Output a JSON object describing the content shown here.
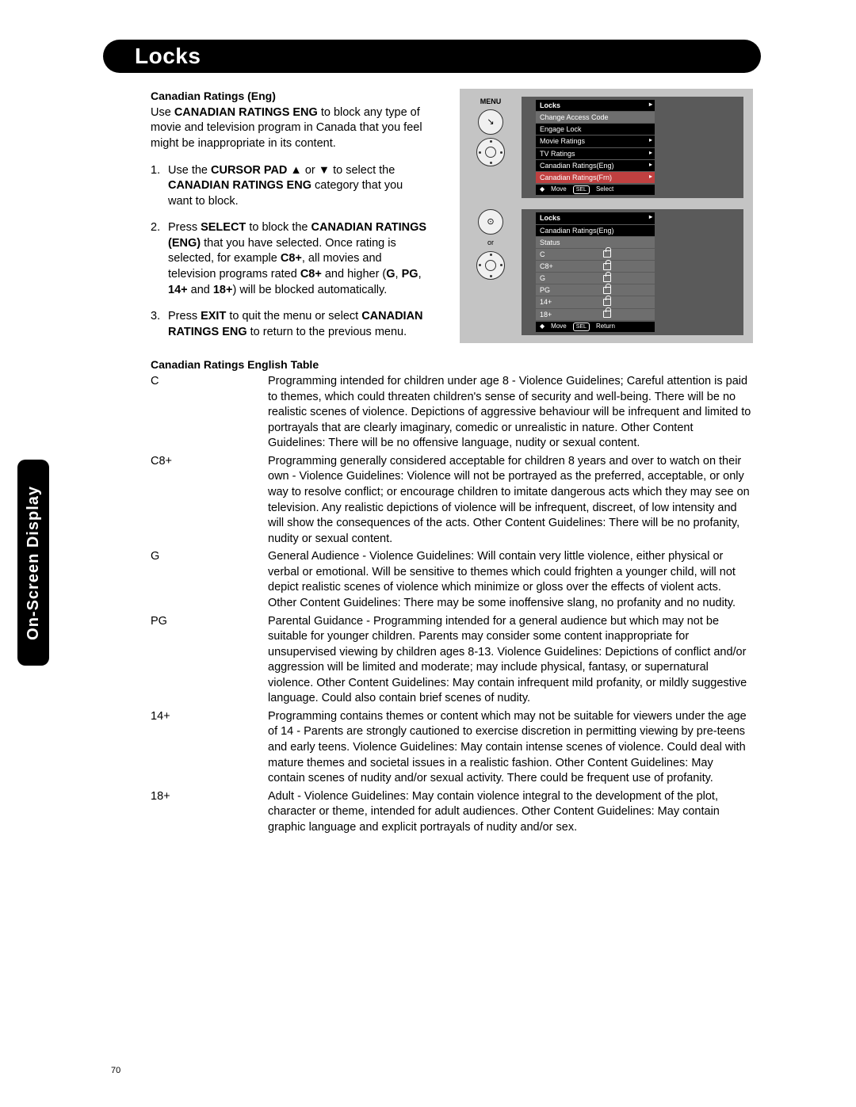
{
  "page": {
    "number": "70",
    "title": "Locks",
    "side_tab": "On-Screen Display"
  },
  "section": {
    "heading": "Canadian Ratings (Eng)",
    "intro_pre": "Use ",
    "intro_bold": "CANADIAN RATINGS ENG",
    "intro_post": " to block any type of movie and television program in Canada that you feel might be inappropriate in its content.",
    "steps": [
      {
        "p1": "Use the ",
        "b1": "CURSOR PAD",
        "p2": " ▲ or ▼ to select the ",
        "b2": "CANADIAN RATINGS ENG",
        "p3": " category that you want to block."
      },
      {
        "p1": "Press ",
        "b1": "SELECT",
        "p2": " to block the ",
        "b2": "CANADIAN RATINGS (ENG)",
        "p3": " that you have selected. Once rating is selected, for example ",
        "b3": "C8+",
        "p4": ", all movies and television programs rated ",
        "b4": "C8+",
        "p5": " and higher (",
        "b5": "G",
        "p6": ", ",
        "b6": "PG",
        "p7": ", ",
        "b7": "14+",
        "p8": " and ",
        "b8": "18+",
        "p9": ") will be blocked automatically."
      },
      {
        "p1": "Press ",
        "b1": "EXIT",
        "p2": " to quit the menu or select ",
        "b2": "CANADIAN RATINGS ENG",
        "p3": " to return to the previous menu."
      }
    ]
  },
  "osd1": {
    "hint": "MENU",
    "title": "Locks",
    "items": [
      {
        "label": "Change Access Code",
        "hl": "hl"
      },
      {
        "label": "Engage Lock"
      },
      {
        "label": "Movie Ratings",
        "arrow": true
      },
      {
        "label": "TV Ratings",
        "arrow": true
      },
      {
        "label": "Canadian Ratings(Eng)",
        "arrow": true
      },
      {
        "label": "Canadian Ratings(Frn)",
        "arrow": true,
        "hl": "hl2"
      }
    ],
    "footer_move": "Move",
    "footer_sel": "SEL",
    "footer_select": "Select"
  },
  "osd2": {
    "hint": "or",
    "title": "Locks",
    "sub": "Canadian Ratings(Eng)",
    "status_label": "Status",
    "ratings": [
      "C",
      "C8+",
      "G",
      "PG",
      "14+",
      "18+"
    ],
    "footer_move": "Move",
    "footer_sel": "SEL",
    "footer_return": "Return"
  },
  "table": {
    "heading": "Canadian Ratings English Table",
    "rows": [
      {
        "code": "C",
        "desc": "Programming intended for children under age 8 - Violence Guidelines; Careful attention is paid to themes, which could threaten children's sense of security and well-being. There will be no realistic scenes of violence. Depictions of aggressive behaviour will be infrequent and limited to portrayals that are clearly imaginary, comedic or unrealistic in nature. Other Content Guidelines: There will be no offensive language, nudity or sexual content."
      },
      {
        "code": "C8+",
        "desc": "Programming generally considered acceptable for children 8 years and over to watch on their own - Violence Guidelines: Violence will not be portrayed as the preferred, acceptable, or only way to resolve conflict; or encourage children to imitate dangerous acts which they may see on television. Any realistic depictions of violence will be infrequent, discreet, of low intensity and will show the consequences of the acts. Other Content Guidelines: There will be no profanity, nudity or sexual content."
      },
      {
        "code": "G",
        "desc": "General Audience - Violence Guidelines: Will contain very little violence, either physical or verbal or emotional. Will be sensitive to themes which could frighten a younger child, will not depict realistic scenes of violence which minimize or gloss over the effects of violent acts. Other Content Guidelines: There may be some inoffensive slang, no profanity and no nudity."
      },
      {
        "code": "PG",
        "desc": "Parental Guidance - Programming intended for a general audience but which may not be suitable for younger children. Parents may consider some content inappropriate for unsupervised viewing by children ages 8-13. Violence Guidelines: Depictions of conflict and/or aggression will be limited and moderate; may include physical, fantasy, or supernatural violence. Other Content Guidelines: May contain infrequent mild profanity, or mildly suggestive language. Could also contain brief scenes of nudity."
      },
      {
        "code": "14+",
        "desc": "Programming contains themes or content which may not be suitable for viewers under the age of 14 - Parents are strongly cautioned to exercise discretion in permitting viewing by pre-teens and early teens. Violence Guidelines: May contain intense scenes of violence. Could deal with mature themes and societal issues in a realistic fashion. Other Content Guidelines: May contain scenes of nudity and/or sexual activity. There could be frequent use of profanity."
      },
      {
        "code": "18+",
        "desc": "Adult - Violence Guidelines: May contain violence integral to the development of the plot, character or theme, intended for adult audiences. Other Content Guidelines: May contain graphic language and explicit portrayals of nudity and/or sex."
      }
    ]
  }
}
